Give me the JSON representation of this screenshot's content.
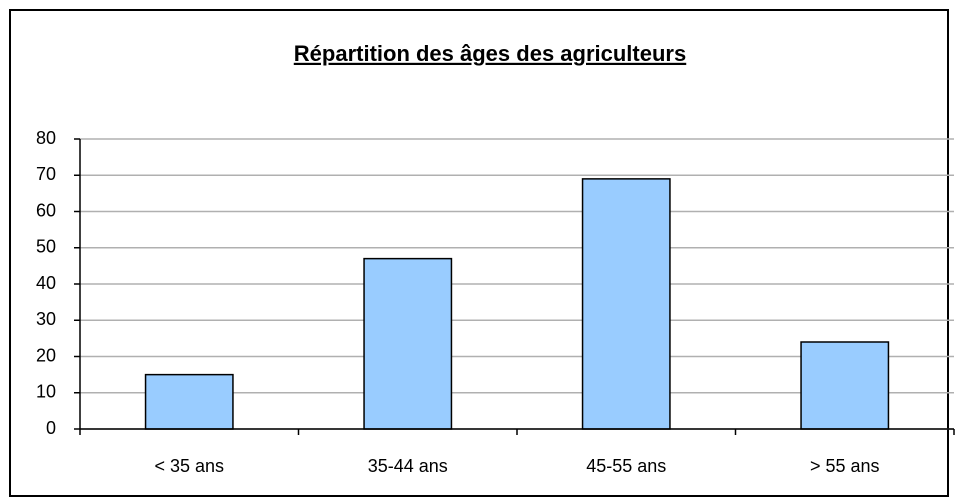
{
  "chart_data": {
    "type": "bar",
    "title": "Répartition des âges des agriculteurs",
    "categories": [
      "< 35 ans",
      "35-44 ans",
      "45-55 ans",
      "> 55 ans"
    ],
    "values": [
      15,
      47,
      69,
      24
    ],
    "color": "#99ccff",
    "ylim": [
      0,
      80
    ],
    "yticks": [
      0,
      10,
      20,
      30,
      40,
      50,
      60,
      70,
      80
    ],
    "grid": true
  }
}
